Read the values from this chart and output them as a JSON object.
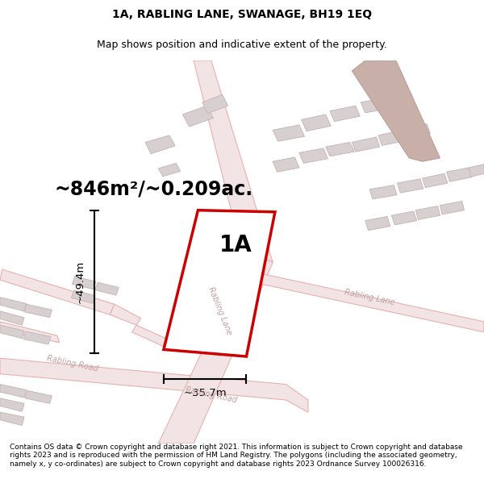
{
  "title_line1": "1A, RABLING LANE, SWANAGE, BH19 1EQ",
  "title_line2": "Map shows position and indicative extent of the property.",
  "area_text": "~846m²/~0.209ac.",
  "label": "1A",
  "dim_height": "~49.4m",
  "dim_width": "~35.7m",
  "footer": "Contains OS data © Crown copyright and database right 2021. This information is subject to Crown copyright and database rights 2023 and is reproduced with the permission of HM Land Registry. The polygons (including the associated geometry, namely x, y co-ordinates) are subject to Crown copyright and database rights 2023 Ordnance Survey 100026316.",
  "map_bg": "#f7f2f2",
  "road_fill": "#f2e4e4",
  "road_edge": "#e8b0b0",
  "building_fill": "#d8d0d0",
  "building_edge": "#c8b8b8",
  "brown_fill": "#c8b0a8",
  "brown_edge": "#b8a098",
  "property_color": "#cc0000",
  "property_fill": "#ffffff",
  "road_label_color": "#c0a0a0",
  "text_color": "#000000",
  "title_fontsize": 10,
  "subtitle_fontsize": 9,
  "area_fontsize": 17,
  "label_fontsize": 20,
  "dim_fontsize": 9.5,
  "road_label_fontsize": 7,
  "footer_fontsize": 6.5
}
